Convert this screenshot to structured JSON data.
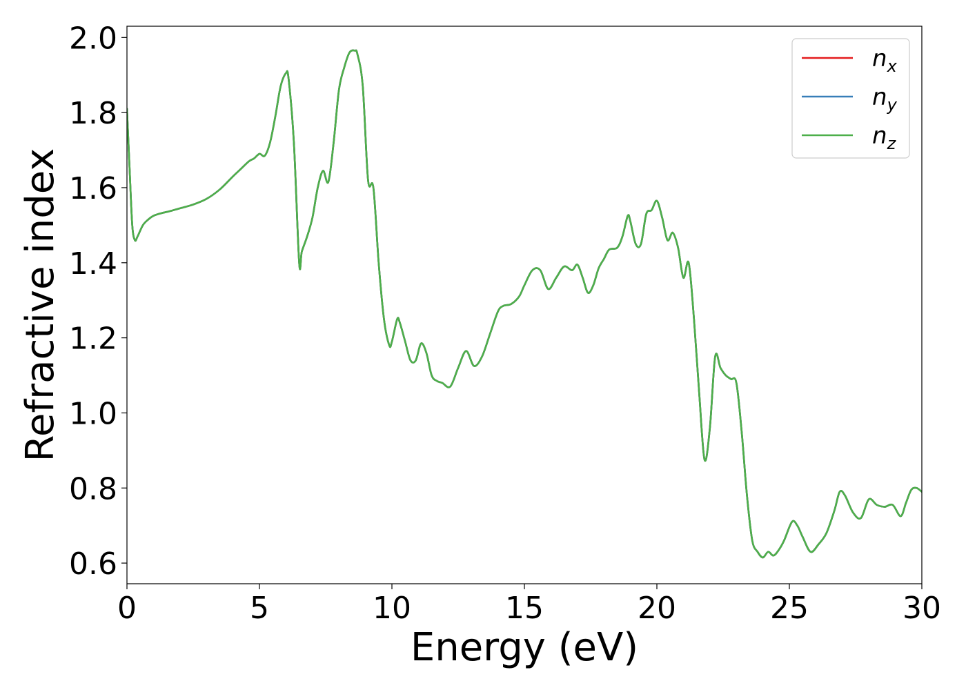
{
  "chart_data": {
    "type": "line",
    "title": "",
    "xlabel": "Energy (eV)",
    "ylabel": "Refractive index",
    "xlim": [
      0,
      30
    ],
    "ylim": [
      0.545,
      2.03
    ],
    "xticks": [
      0,
      5,
      10,
      15,
      20,
      25,
      30
    ],
    "yticks": [
      0.6,
      0.8,
      1.0,
      1.2,
      1.4,
      1.6,
      1.8,
      2.0
    ],
    "grid": false,
    "legend_position": "top-right",
    "x": [
      0.0,
      0.1,
      0.2,
      0.3,
      0.4,
      0.6,
      0.8,
      1.0,
      1.3,
      1.6,
      2.0,
      2.5,
      3.0,
      3.5,
      4.0,
      4.3,
      4.6,
      4.8,
      5.0,
      5.2,
      5.4,
      5.6,
      5.8,
      6.0,
      6.1,
      6.3,
      6.5,
      6.6,
      6.8,
      7.0,
      7.2,
      7.4,
      7.6,
      7.8,
      8.0,
      8.2,
      8.4,
      8.6,
      8.7,
      8.9,
      9.1,
      9.3,
      9.5,
      9.7,
      9.9,
      10.0,
      10.2,
      10.3,
      10.5,
      10.7,
      10.9,
      11.1,
      11.3,
      11.5,
      11.7,
      11.9,
      12.2,
      12.5,
      12.8,
      13.1,
      13.4,
      13.7,
      14.0,
      14.2,
      14.5,
      14.8,
      15.0,
      15.3,
      15.6,
      15.9,
      16.2,
      16.5,
      16.8,
      17.0,
      17.2,
      17.4,
      17.6,
      17.8,
      18.0,
      18.2,
      18.5,
      18.7,
      18.9,
      19.0,
      19.2,
      19.4,
      19.6,
      19.8,
      20.0,
      20.2,
      20.4,
      20.6,
      20.8,
      21.0,
      21.2,
      21.4,
      21.6,
      21.8,
      22.0,
      22.2,
      22.4,
      22.6,
      22.8,
      23.0,
      23.2,
      23.4,
      23.6,
      23.8,
      24.0,
      24.2,
      24.4,
      24.6,
      24.8,
      25.1,
      25.3,
      25.5,
      25.8,
      26.1,
      26.4,
      26.7,
      26.9,
      27.1,
      27.4,
      27.7,
      28.0,
      28.3,
      28.6,
      28.9,
      29.2,
      29.4,
      29.6,
      29.8,
      30.0
    ],
    "series": [
      {
        "name": "n_x",
        "label_main": "n",
        "label_sub": "x",
        "color": "#e41a1c",
        "values": [
          1.81,
          1.65,
          1.5,
          1.46,
          1.47,
          1.5,
          1.515,
          1.525,
          1.532,
          1.537,
          1.545,
          1.555,
          1.57,
          1.595,
          1.63,
          1.65,
          1.67,
          1.678,
          1.69,
          1.685,
          1.72,
          1.79,
          1.87,
          1.905,
          1.89,
          1.72,
          1.4,
          1.43,
          1.47,
          1.52,
          1.6,
          1.645,
          1.615,
          1.72,
          1.86,
          1.92,
          1.96,
          1.965,
          1.955,
          1.87,
          1.62,
          1.6,
          1.4,
          1.25,
          1.18,
          1.19,
          1.25,
          1.24,
          1.19,
          1.14,
          1.14,
          1.185,
          1.16,
          1.1,
          1.085,
          1.08,
          1.07,
          1.12,
          1.165,
          1.125,
          1.15,
          1.21,
          1.27,
          1.285,
          1.29,
          1.31,
          1.34,
          1.38,
          1.38,
          1.33,
          1.36,
          1.39,
          1.38,
          1.395,
          1.36,
          1.32,
          1.34,
          1.385,
          1.41,
          1.435,
          1.44,
          1.47,
          1.525,
          1.51,
          1.45,
          1.45,
          1.53,
          1.54,
          1.565,
          1.52,
          1.46,
          1.48,
          1.44,
          1.36,
          1.4,
          1.25,
          1.05,
          0.875,
          0.96,
          1.15,
          1.12,
          1.1,
          1.09,
          1.08,
          0.95,
          0.78,
          0.66,
          0.63,
          0.615,
          0.63,
          0.62,
          0.635,
          0.66,
          0.71,
          0.7,
          0.67,
          0.63,
          0.65,
          0.68,
          0.74,
          0.79,
          0.78,
          0.735,
          0.72,
          0.77,
          0.755,
          0.75,
          0.755,
          0.725,
          0.76,
          0.795,
          0.8,
          0.79
        ]
      },
      {
        "name": "n_y",
        "label_main": "n",
        "label_sub": "y",
        "color": "#377eb8",
        "values": [
          1.81,
          1.65,
          1.5,
          1.46,
          1.47,
          1.5,
          1.515,
          1.525,
          1.532,
          1.537,
          1.545,
          1.555,
          1.57,
          1.595,
          1.63,
          1.65,
          1.67,
          1.678,
          1.69,
          1.685,
          1.72,
          1.79,
          1.87,
          1.905,
          1.89,
          1.72,
          1.4,
          1.43,
          1.47,
          1.52,
          1.6,
          1.645,
          1.615,
          1.72,
          1.86,
          1.92,
          1.96,
          1.965,
          1.955,
          1.87,
          1.62,
          1.6,
          1.4,
          1.25,
          1.18,
          1.19,
          1.25,
          1.24,
          1.19,
          1.14,
          1.14,
          1.185,
          1.16,
          1.1,
          1.085,
          1.08,
          1.07,
          1.12,
          1.165,
          1.125,
          1.15,
          1.21,
          1.27,
          1.285,
          1.29,
          1.31,
          1.34,
          1.38,
          1.38,
          1.33,
          1.36,
          1.39,
          1.38,
          1.395,
          1.36,
          1.32,
          1.34,
          1.385,
          1.41,
          1.435,
          1.44,
          1.47,
          1.525,
          1.51,
          1.45,
          1.45,
          1.53,
          1.54,
          1.565,
          1.52,
          1.46,
          1.48,
          1.44,
          1.36,
          1.4,
          1.25,
          1.05,
          0.875,
          0.96,
          1.15,
          1.12,
          1.1,
          1.09,
          1.08,
          0.95,
          0.78,
          0.66,
          0.63,
          0.615,
          0.63,
          0.62,
          0.635,
          0.66,
          0.71,
          0.7,
          0.67,
          0.63,
          0.65,
          0.68,
          0.74,
          0.79,
          0.78,
          0.735,
          0.72,
          0.77,
          0.755,
          0.75,
          0.755,
          0.725,
          0.76,
          0.795,
          0.8,
          0.79
        ]
      },
      {
        "name": "n_z",
        "label_main": "n",
        "label_sub": "z",
        "color": "#4daf4a",
        "values": [
          1.81,
          1.65,
          1.5,
          1.46,
          1.47,
          1.5,
          1.515,
          1.525,
          1.532,
          1.537,
          1.545,
          1.555,
          1.57,
          1.595,
          1.63,
          1.65,
          1.67,
          1.678,
          1.69,
          1.685,
          1.72,
          1.79,
          1.87,
          1.905,
          1.89,
          1.72,
          1.4,
          1.43,
          1.47,
          1.52,
          1.6,
          1.645,
          1.615,
          1.72,
          1.86,
          1.92,
          1.96,
          1.965,
          1.955,
          1.87,
          1.62,
          1.6,
          1.4,
          1.25,
          1.18,
          1.19,
          1.25,
          1.24,
          1.19,
          1.14,
          1.14,
          1.185,
          1.16,
          1.1,
          1.085,
          1.08,
          1.07,
          1.12,
          1.165,
          1.125,
          1.15,
          1.21,
          1.27,
          1.285,
          1.29,
          1.31,
          1.34,
          1.38,
          1.38,
          1.33,
          1.36,
          1.39,
          1.38,
          1.395,
          1.36,
          1.32,
          1.34,
          1.385,
          1.41,
          1.435,
          1.44,
          1.47,
          1.525,
          1.51,
          1.45,
          1.45,
          1.53,
          1.54,
          1.565,
          1.52,
          1.46,
          1.48,
          1.44,
          1.36,
          1.4,
          1.25,
          1.05,
          0.875,
          0.96,
          1.15,
          1.12,
          1.1,
          1.09,
          1.08,
          0.95,
          0.78,
          0.66,
          0.63,
          0.615,
          0.63,
          0.62,
          0.635,
          0.66,
          0.71,
          0.7,
          0.67,
          0.63,
          0.65,
          0.68,
          0.74,
          0.79,
          0.78,
          0.735,
          0.72,
          0.77,
          0.755,
          0.75,
          0.755,
          0.725,
          0.76,
          0.795,
          0.8,
          0.79
        ]
      }
    ]
  }
}
